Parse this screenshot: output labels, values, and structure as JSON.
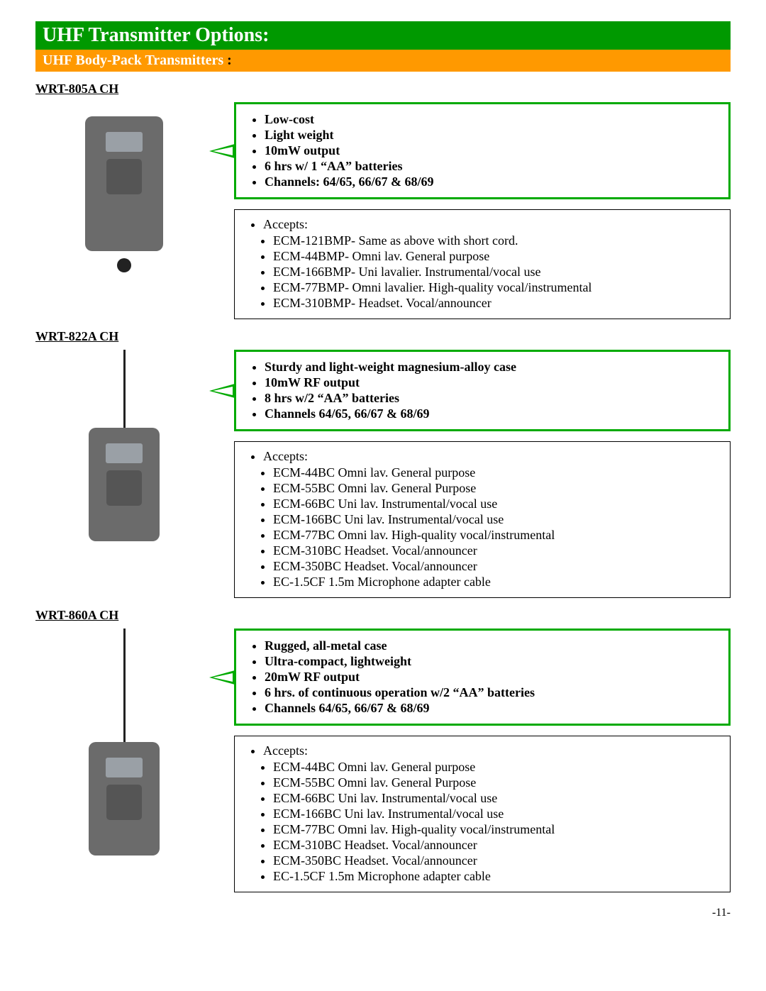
{
  "header": {
    "title": "UHF Transmitter Options:",
    "subtitle": "UHF Body-Pack Transmitters",
    "colon": ":"
  },
  "page_number": "-11-",
  "colors": {
    "title_bg": "#009900",
    "subtitle_bg": "#ff9900",
    "header_text": "#ffffff",
    "feature_border": "#00aa00",
    "accept_border": "#000000",
    "background": "#ffffff"
  },
  "products": [
    {
      "model": "WRT-805A CH",
      "features": [
        "Low-cost",
        "Light weight",
        "10mW output",
        "6 hrs w/ 1 “AA” batteries",
        "Channels: 64/65, 66/67 & 68/69"
      ],
      "accepts_label": "Accepts:",
      "accepts": [
        "ECM-121BMP- Same as above with short cord.",
        "ECM-44BMP- Omni lav. General purpose",
        "ECM-166BMP- Uni lavalier. Instrumental/vocal use",
        "ECM-77BMP- Omni lavalier. High-quality vocal/instrumental",
        "ECM-310BMP- Headset. Vocal/announcer"
      ]
    },
    {
      "model": "WRT-822A CH",
      "features": [
        "Sturdy and light-weight magnesium-alloy case",
        "10mW RF output",
        "8 hrs w/2 “AA” batteries",
        "Channels 64/65, 66/67 & 68/69"
      ],
      "accepts_label": "Accepts:",
      "accepts": [
        "ECM-44BC Omni lav. General purpose",
        "ECM-55BC Omni lav. General Purpose",
        "ECM-66BC Uni lav. Instrumental/vocal use",
        "ECM-166BC Uni lav. Instrumental/vocal use",
        "ECM-77BC Omni lav. High-quality vocal/instrumental",
        "ECM-310BC Headset. Vocal/announcer",
        "ECM-350BC Headset. Vocal/announcer",
        "EC-1.5CF 1.5m Microphone adapter cable"
      ]
    },
    {
      "model": "WRT-860A CH",
      "features": [
        "Rugged, all-metal case",
        "Ultra-compact, lightweight",
        "20mW RF output",
        "6 hrs. of continuous operation w/2 “AA” batteries",
        "Channels 64/65, 66/67 & 68/69"
      ],
      "accepts_label": "Accepts:",
      "accepts": [
        "ECM-44BC Omni lav. General purpose",
        "ECM-55BC Omni lav. General Purpose",
        "ECM-66BC Uni lav. Instrumental/vocal use",
        "ECM-166BC Uni lav. Instrumental/vocal use",
        "ECM-77BC Omni lav. High-quality vocal/instrumental",
        "ECM-310BC Headset. Vocal/announcer",
        "ECM-350BC Headset. Vocal/announcer",
        "EC-1.5CF 1.5m Microphone adapter cable"
      ]
    }
  ]
}
